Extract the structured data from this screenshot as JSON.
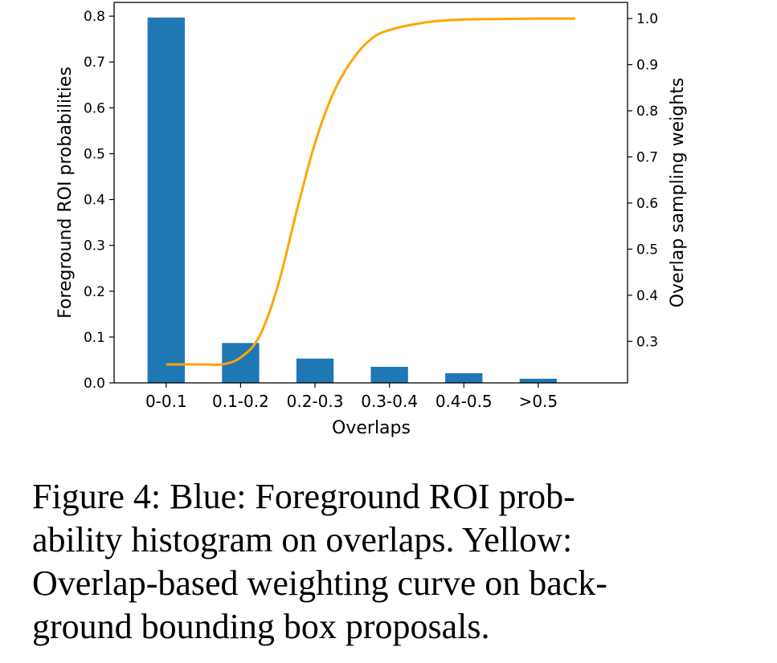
{
  "chart_data": {
    "type": "bar",
    "categories": [
      "0-0.1",
      "0.1-0.2",
      "0.2-0.3",
      "0.3-0.4",
      "0.4-0.5",
      ">0.5"
    ],
    "xlabel": "Overlaps",
    "ylabel": "Foreground ROI probabilities",
    "ylabel_right": "Overlap sampling weights",
    "ylim": [
      0,
      0.83
    ],
    "ylim_right": [
      0.21,
      1.035
    ],
    "yticks": [
      "0.0",
      "0.1",
      "0.2",
      "0.3",
      "0.4",
      "0.5",
      "0.6",
      "0.7",
      "0.8"
    ],
    "yticks_right": [
      "0.3",
      "0.4",
      "0.5",
      "0.6",
      "0.7",
      "0.8",
      "0.9",
      "1.0"
    ],
    "series": [
      {
        "type": "bar",
        "axis": "left",
        "color": "#1f77b4",
        "values": [
          0.797,
          0.087,
          0.053,
          0.035,
          0.021,
          0.009
        ]
      },
      {
        "type": "line",
        "axis": "right",
        "color": "#ffa500",
        "x": [
          0,
          0.5,
          0.75,
          1.0,
          1.25,
          1.5,
          1.75,
          2.0,
          2.25,
          2.5,
          2.75,
          3.0,
          3.5,
          4.0,
          4.5,
          5.0,
          5.5
        ],
        "values": [
          0.25,
          0.25,
          0.25,
          0.265,
          0.31,
          0.42,
          0.58,
          0.73,
          0.84,
          0.91,
          0.955,
          0.975,
          0.992,
          0.998,
          0.999,
          1.0,
          1.0
        ]
      }
    ],
    "grid": false
  },
  "caption": {
    "lines": [
      "Figure 4:   Blue: Foreground ROI prob-",
      "ability histogram on overlaps.  Yellow:",
      "Overlap-based weighting curve on back-",
      "ground bounding box proposals."
    ]
  }
}
